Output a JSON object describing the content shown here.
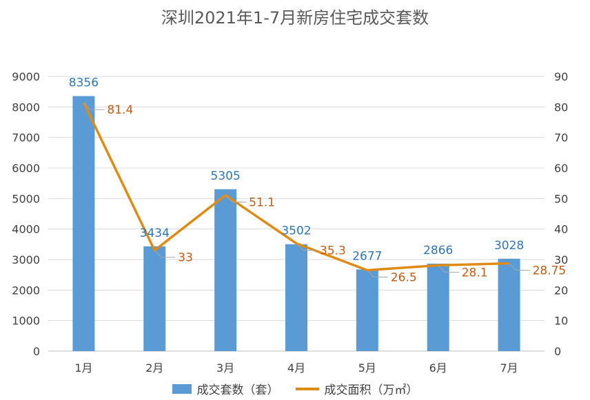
{
  "chart_data": {
    "type": "bar",
    "title": "深圳2021年1-7月新房住宅成交套数",
    "categories": [
      "1月",
      "2月",
      "3月",
      "4月",
      "5月",
      "6月",
      "7月"
    ],
    "series": [
      {
        "name": "成交套数（套）",
        "type": "bar",
        "axis": "left",
        "values": [
          8356,
          3434,
          5305,
          3502,
          2677,
          2866,
          3028
        ],
        "labels": [
          "8356",
          "3434",
          "5305",
          "3502",
          "2677",
          "2866",
          "3028"
        ]
      },
      {
        "name": "成交面积（万㎡）",
        "type": "line",
        "axis": "right",
        "values": [
          81.4,
          33,
          51.1,
          35.3,
          26.5,
          28.1,
          28.75
        ],
        "labels": [
          "81.4",
          "33",
          "51.1",
          "35.3",
          "26.5",
          "28.1",
          "28.75"
        ]
      }
    ],
    "y_left": {
      "min": 0,
      "max": 9000,
      "step": 1000
    },
    "y_right": {
      "min": 0,
      "max": 90,
      "step": 10
    },
    "grid": true,
    "legend_position": "bottom",
    "colors": {
      "bar": "#5b9bd5",
      "line": "#e08a14",
      "bar_label": "#2e75b6",
      "line_label": "#c55a11"
    }
  }
}
